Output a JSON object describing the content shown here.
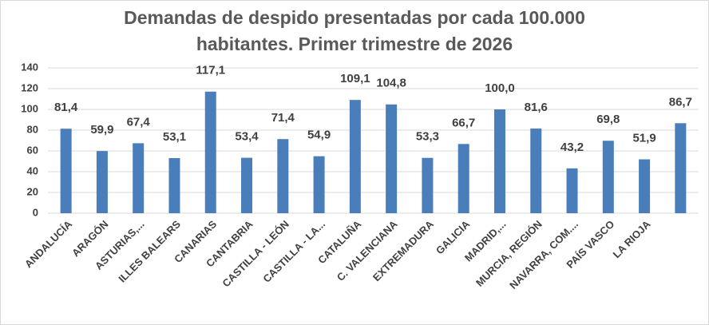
{
  "chart_data": {
    "type": "bar",
    "title": "Demandas de despido presentadas por cada 100.000 habitantes. Primer trimestre de 2026",
    "categories": [
      "ANDALUCÍA",
      "ARAGÓN",
      "ASTURIAS,...",
      "ILLES BALEARS",
      "CANARIAS",
      "CANTABRIA",
      "CASTILLA - LEÓN",
      "CASTILLA - LA...",
      "CATALUÑA",
      "C. VALENCIANA",
      "EXTREMADURA",
      "GALICIA",
      "MADRID,...",
      "MURCIA, REGIÓN",
      "NAVARRA, COM....",
      "PAÍS VASCO",
      "LA RIOJA",
      ""
    ],
    "values": [
      81.4,
      59.9,
      67.4,
      53.1,
      117.1,
      53.4,
      71.4,
      54.9,
      109.1,
      104.8,
      53.3,
      66.7,
      100.0,
      81.6,
      43.2,
      69.8,
      51.9,
      86.7
    ],
    "value_labels": [
      "81,4",
      "59,9",
      "67,4",
      "53,1",
      "117,1",
      "53,4",
      "71,4",
      "54,9",
      "109,1",
      "104,8",
      "53,3",
      "66,7",
      "100,0",
      "81,6",
      "43,2",
      "69,8",
      "51,9",
      "86,7"
    ],
    "color": "#4a7ebb",
    "ylim": [
      0,
      140
    ],
    "yticks": [
      0,
      20,
      40,
      60,
      80,
      100,
      120,
      140
    ],
    "grid": true
  }
}
